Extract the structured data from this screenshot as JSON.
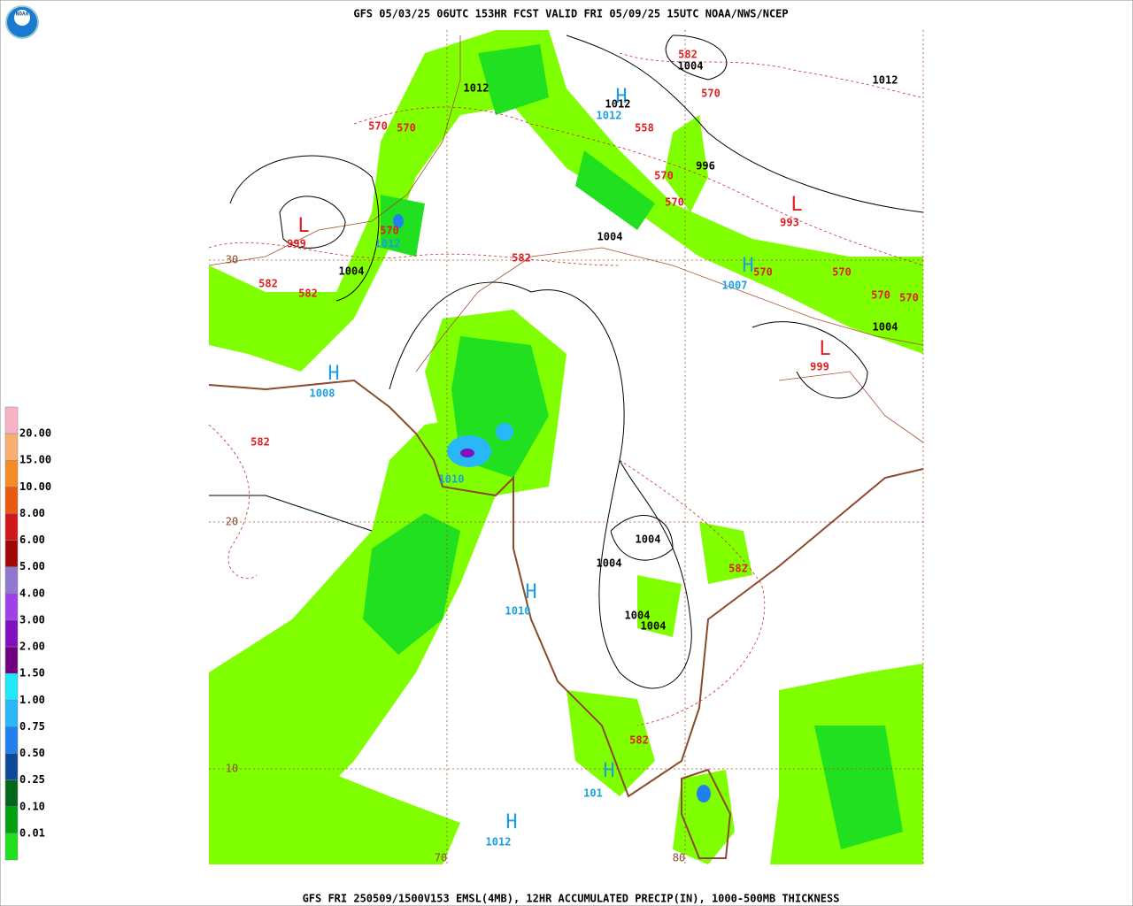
{
  "header": {
    "title": "GFS 05/03/25 06UTC 153HR FCST VALID FRI 05/09/25 15UTC NOAA/NWS/NCEP"
  },
  "footer": {
    "caption": "GFS FRI 250509/1500V153 EMSL(4MB), 12HR ACCUMULATED PRECIP(IN), 1000-500MB THICKNESS"
  },
  "logo": {
    "text": "NOAA"
  },
  "legend": {
    "labels": [
      "20.00",
      "15.00",
      "10.00",
      "8.00",
      "6.00",
      "5.00",
      "4.00",
      "3.00",
      "2.00",
      "1.50",
      "1.00",
      "0.75",
      "0.50",
      "0.25",
      "0.10",
      "0.01"
    ],
    "colors": [
      "#f7b4c4",
      "#f8b070",
      "#f48c28",
      "#e85a10",
      "#d01818",
      "#a00808",
      "#9078d0",
      "#a040e8",
      "#8010c0",
      "#700080",
      "#20e8f8",
      "#28b8f8",
      "#2080f0",
      "#104898",
      "#006818",
      "#00a010",
      "#20e020",
      "#80ff00",
      "#ffffff"
    ]
  },
  "map": {
    "highs": [
      {
        "symbol": "H",
        "value": "1012"
      },
      {
        "symbol": "H",
        "value": "1007"
      },
      {
        "symbol": "H",
        "value": "1008"
      },
      {
        "symbol": "H",
        "value": "1010"
      },
      {
        "symbol": "H",
        "value": "1012"
      },
      {
        "symbol": "H",
        "value": "101"
      }
    ],
    "highs_extra": [
      "1010",
      "1012"
    ],
    "lows": [
      {
        "symbol": "L",
        "value": "999"
      },
      {
        "symbol": "L",
        "value": "993"
      },
      {
        "symbol": "L",
        "value": "999"
      }
    ],
    "isobar_labels": [
      "1004",
      "1012",
      "1012",
      "1012",
      "996",
      "1004",
      "1004",
      "1004",
      "1004",
      "1004",
      "1004",
      "1004"
    ],
    "thickness_labels": [
      "582",
      "570",
      "558",
      "570",
      "570",
      "570",
      "570",
      "570",
      "582",
      "582",
      "582",
      "582",
      "570",
      "570",
      "570",
      "570",
      "582",
      "582"
    ],
    "grid_labels": [
      "30",
      "20",
      "10",
      "70",
      "80"
    ]
  }
}
